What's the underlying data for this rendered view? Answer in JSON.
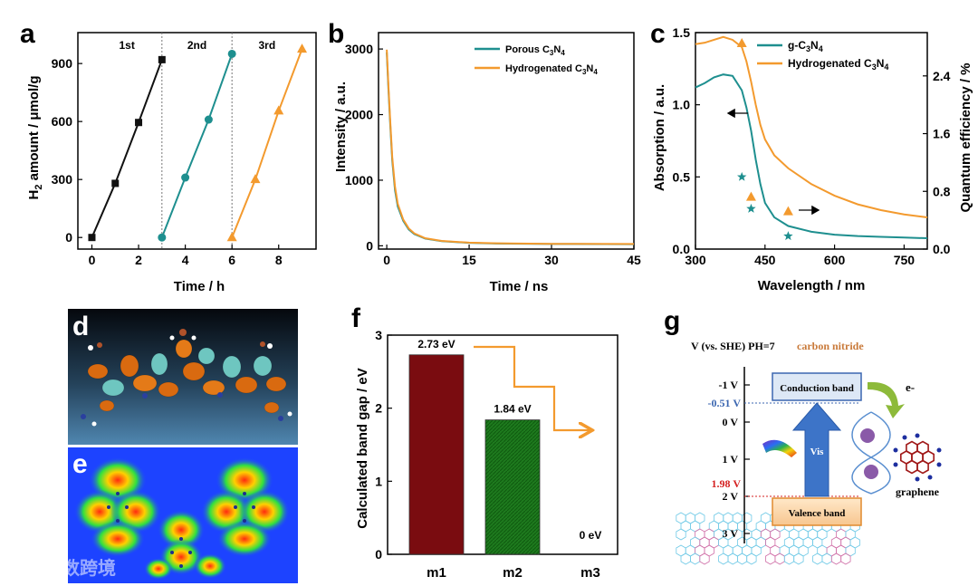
{
  "panels": {
    "a": "a",
    "b": "b",
    "c": "c",
    "d": "d",
    "e": "e",
    "f": "f",
    "g": "g"
  },
  "watermark": "大数跨境",
  "colors": {
    "black": "#111111",
    "teal": "#1e8f8f",
    "orange": "#f39a2e",
    "dark_red": "#7a0c10",
    "dark_green": "#1e7a1e"
  },
  "chart_data": [
    {
      "id": "a",
      "type": "line",
      "title": "",
      "xlabel": "Time / h",
      "ylabel": "H2 amount / μmol/g",
      "xlim": [
        -0.6,
        9.6
      ],
      "ylim": [
        -60,
        1060
      ],
      "xticks": [
        "0",
        "2",
        "4",
        "6",
        "8"
      ],
      "xtick_values": [
        0,
        2,
        4,
        6,
        8
      ],
      "yticks": [
        "0",
        "300",
        "600",
        "900"
      ],
      "ytick_values": [
        0,
        300,
        600,
        900
      ],
      "dividers": [
        3,
        6
      ],
      "cycle_labels": [
        "1st",
        "2nd",
        "3rd"
      ],
      "series": [
        {
          "name": "1st",
          "marker": "square",
          "x": [
            0,
            1,
            2,
            3
          ],
          "y": [
            0,
            280,
            595,
            920
          ]
        },
        {
          "name": "2nd",
          "marker": "circle",
          "x": [
            3,
            4,
            5,
            6
          ],
          "y": [
            0,
            310,
            610,
            950
          ]
        },
        {
          "name": "3rd",
          "marker": "triangle",
          "x": [
            6,
            7,
            8,
            9
          ],
          "y": [
            0,
            300,
            655,
            975
          ]
        }
      ]
    },
    {
      "id": "b",
      "type": "line",
      "title": "",
      "xlabel": "Time / ns",
      "ylabel": "Intensity / a.u.",
      "xlim": [
        -1.5,
        45
      ],
      "ylim": [
        -50,
        3250
      ],
      "xticks": [
        "0",
        "15",
        "30",
        "45"
      ],
      "xtick_values": [
        0,
        15,
        30,
        45
      ],
      "yticks": [
        "0",
        "1000",
        "2000",
        "3000"
      ],
      "ytick_values": [
        0,
        1000,
        2000,
        3000
      ],
      "legend": {
        "position": "top-right",
        "entries": [
          "Porous C3N4",
          "Hydrogenated C3N4"
        ]
      },
      "series": [
        {
          "name": "Porous C3N4",
          "x": [
            0,
            0.3,
            0.6,
            1,
            1.5,
            2,
            3,
            4,
            5,
            7,
            10,
            15,
            20,
            30,
            45
          ],
          "y": [
            2950,
            2400,
            1900,
            1300,
            850,
            600,
            380,
            250,
            180,
            110,
            70,
            45,
            35,
            28,
            25
          ]
        },
        {
          "name": "Hydrogenated C3N4",
          "x": [
            0,
            0.3,
            0.6,
            1,
            1.5,
            2,
            3,
            4,
            5,
            7,
            10,
            15,
            20,
            30,
            45
          ],
          "y": [
            2990,
            2450,
            1950,
            1350,
            900,
            640,
            400,
            265,
            190,
            115,
            75,
            48,
            38,
            30,
            27
          ]
        }
      ]
    },
    {
      "id": "c",
      "type": "line",
      "title": "",
      "xlabel": "Wavelength / nm",
      "ylabel": "Absorption / a.u.",
      "y2label": "Quantum efficiency / %",
      "xlim": [
        300,
        800
      ],
      "ylim": [
        0,
        1.5
      ],
      "y2lim": [
        0,
        3.0
      ],
      "xticks": [
        "300",
        "450",
        "600",
        "750"
      ],
      "xtick_values": [
        300,
        450,
        600,
        750
      ],
      "yticks": [
        "0.0",
        "0.5",
        "1.0",
        "1.5"
      ],
      "ytick_values": [
        0,
        0.5,
        1.0,
        1.5
      ],
      "y2ticks": [
        "0.0",
        "0.8",
        "1.6",
        "2.4"
      ],
      "y2tick_values": [
        0,
        0.8,
        1.6,
        2.4
      ],
      "legend": {
        "position": "top-right",
        "entries": [
          "g-C3N4",
          "Hydrogenated C3N4"
        ]
      },
      "series": [
        {
          "name": "g-C3N4",
          "axis": "left",
          "x": [
            300,
            320,
            340,
            360,
            380,
            400,
            410,
            420,
            430,
            440,
            450,
            470,
            500,
            550,
            600,
            650,
            700,
            750,
            800
          ],
          "y": [
            1.12,
            1.15,
            1.19,
            1.21,
            1.2,
            1.1,
            0.98,
            0.82,
            0.62,
            0.45,
            0.32,
            0.22,
            0.16,
            0.12,
            0.1,
            0.09,
            0.085,
            0.08,
            0.075
          ]
        },
        {
          "name": "Hydrogenated C3N4",
          "axis": "left",
          "x": [
            300,
            320,
            340,
            360,
            380,
            400,
            410,
            420,
            430,
            440,
            450,
            470,
            500,
            550,
            600,
            650,
            700,
            750,
            800
          ],
          "y": [
            1.42,
            1.43,
            1.45,
            1.47,
            1.45,
            1.4,
            1.3,
            1.16,
            1.0,
            0.86,
            0.76,
            0.65,
            0.56,
            0.45,
            0.37,
            0.31,
            0.27,
            0.24,
            0.22
          ]
        }
      ],
      "qe_points": [
        {
          "series": "g-C3N4",
          "marker": "star",
          "x": [
            400,
            420,
            500
          ],
          "y2": [
            1.0,
            0.56,
            0.18
          ]
        },
        {
          "series": "Hydrogenated C3N4",
          "marker": "triangle",
          "x": [
            400,
            420,
            500
          ],
          "y2": [
            2.85,
            0.72,
            0.52
          ]
        }
      ]
    },
    {
      "id": "f",
      "type": "bar",
      "title": "",
      "xlabel": "",
      "ylabel": "Calculated band gap / eV",
      "categories": [
        "m1",
        "m2",
        "m3"
      ],
      "values": [
        2.73,
        1.84,
        0
      ],
      "value_labels": [
        "2.73 eV",
        "1.84 eV",
        "0 eV"
      ],
      "ylim": [
        0,
        3
      ],
      "yticks": [
        "0",
        "1",
        "2",
        "3"
      ],
      "ytick_values": [
        0,
        1,
        2,
        3
      ],
      "bar_colors": [
        "#7a0c10",
        "#1e7a1e",
        "#ffffff"
      ]
    }
  ],
  "diagram_g": {
    "header": "V (vs. SHE) PH=7",
    "material": "carbon nitride",
    "potential_labels": [
      "-1 V",
      "0 V",
      "1 V",
      "2 V",
      "3 V"
    ],
    "cb_potential": "-0.51 V",
    "vb_potential": "1.98 V",
    "conduction_band": "Conduction band",
    "valence_band": "Valence band",
    "arrow_label": "Vis",
    "electron": "e-",
    "graphene": "graphene"
  }
}
